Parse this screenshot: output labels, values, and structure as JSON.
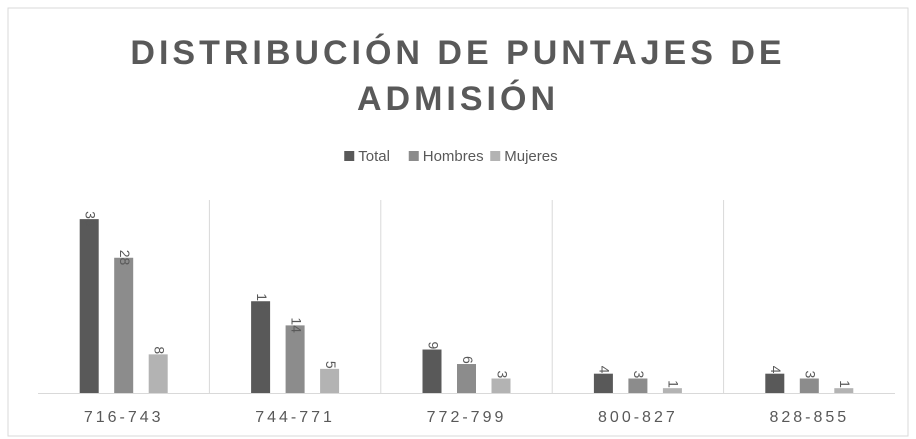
{
  "chart_data": {
    "type": "bar",
    "title": "DISTRIBUCIÓN DE PUNTAJES DE ADMISIÓN",
    "categories": [
      "716-743",
      "744-771",
      "772-799",
      "800-827",
      "828-855"
    ],
    "series": [
      {
        "name": "Total",
        "color": "#595959",
        "values": [
          36,
          19,
          9,
          4,
          4
        ]
      },
      {
        "name": "Hombres",
        "color": "#8c8c8c",
        "values": [
          28,
          14,
          6,
          3,
          3
        ]
      },
      {
        "name": "Mujeres",
        "color": "#b3b3b3",
        "values": [
          8,
          5,
          3,
          1,
          1
        ]
      }
    ],
    "legend": "top"
  }
}
